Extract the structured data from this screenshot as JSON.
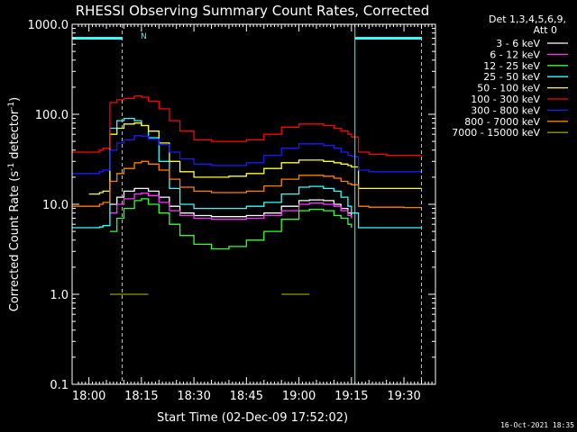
{
  "chart_data": {
    "type": "line",
    "title": "RHESSI Observing Summary Count Rates, Corrected",
    "xlabel": "Start Time (02-Dec-09 17:52:02)",
    "ylabel": "Corrected Count Rate (s⁻¹ detector⁻¹)",
    "ylabel_parts": {
      "main": "Corrected Count Rate (s",
      "sup1": "-1",
      "mid": " detector",
      "sup2": "-1",
      "end": ")"
    },
    "yscale": "log",
    "xlim_minutes": [
      -4.8,
      99
    ],
    "ylim": [
      0.1,
      1000
    ],
    "x_ticks": [
      {
        "label": "18:00",
        "minute": 0
      },
      {
        "label": "18:15",
        "minute": 15
      },
      {
        "label": "18:30",
        "minute": 30
      },
      {
        "label": "18:45",
        "minute": 45
      },
      {
        "label": "19:00",
        "minute": 60
      },
      {
        "label": "19:15",
        "minute": 75
      },
      {
        "label": "19:30",
        "minute": 90
      }
    ],
    "y_ticks": [
      {
        "label": "0.1",
        "value": 0.1
      },
      {
        "label": "1.0",
        "value": 1
      },
      {
        "label": "10.0",
        "value": 10
      },
      {
        "label": "100.0",
        "value": 100
      },
      {
        "label": "1000.0",
        "value": 1000
      }
    ],
    "legend_header": [
      "Det 1,3,4,5,6,9,",
      "Att 0"
    ],
    "legend_position": "right",
    "night_label": "N",
    "timestamp": "16-Oct-2021 18:35",
    "x": [
      -4.8,
      0,
      3,
      4,
      6,
      8,
      10,
      13,
      15,
      17,
      20,
      23,
      26,
      30,
      35,
      40,
      45,
      50,
      55,
      60,
      63,
      67,
      70,
      72,
      74,
      75,
      77,
      80,
      85,
      90,
      95,
      99
    ],
    "series": [
      {
        "name": "3 - 6 keV",
        "color": "#ffffff",
        "values": [
          null,
          null,
          null,
          null,
          10,
          12,
          14,
          15,
          15,
          14,
          12,
          9.5,
          8,
          7.5,
          7.3,
          7.3,
          7.5,
          8,
          9.5,
          11,
          11.2,
          11,
          10,
          9,
          8,
          7,
          null,
          null,
          null,
          null,
          null,
          null
        ]
      },
      {
        "name": "6 - 12 keV",
        "color": "#ff33ff",
        "values": [
          null,
          null,
          null,
          null,
          8,
          10,
          11.5,
          13,
          13.3,
          12.5,
          10.5,
          8.5,
          7.5,
          7,
          6.8,
          6.8,
          7,
          7.5,
          8.5,
          10,
          10.3,
          10,
          9.5,
          8.5,
          7.5,
          7,
          null,
          null,
          null,
          null,
          null,
          null
        ]
      },
      {
        "name": "12 - 25 keV",
        "color": "#33ff33",
        "values": [
          null,
          null,
          null,
          null,
          5,
          7,
          9,
          11,
          11.5,
          10,
          8,
          6,
          4.5,
          3.6,
          3.2,
          3.4,
          4,
          5,
          6.8,
          8.5,
          8.8,
          8.5,
          7.5,
          7,
          6,
          5.5,
          null,
          null,
          null,
          null,
          null,
          null
        ]
      },
      {
        "name": "25 - 50 keV",
        "color": "#33ffff",
        "values": [
          5.5,
          5.5,
          5.6,
          5.8,
          70,
          85,
          90,
          85,
          75,
          55,
          30,
          15,
          10,
          9,
          9,
          9,
          9.5,
          10.5,
          13,
          15.5,
          15.8,
          15,
          14,
          12,
          9.5,
          8,
          5.5,
          5.5,
          5.5,
          5.5,
          5.5,
          null
        ]
      },
      {
        "name": "50 - 100 keV",
        "color": "#ffff33",
        "values": [
          null,
          13,
          13.5,
          14,
          60,
          70,
          78,
          80,
          75,
          65,
          48,
          30,
          23,
          20,
          20,
          20.5,
          22,
          25,
          29,
          31,
          31,
          30,
          29,
          28,
          27,
          26,
          15,
          15,
          15,
          15,
          15,
          null
        ]
      },
      {
        "name": "100 - 300 keV",
        "color": "#ff0000",
        "values": [
          38,
          38,
          40,
          42,
          135,
          145,
          150,
          160,
          155,
          140,
          115,
          85,
          65,
          52,
          50,
          50,
          52,
          60,
          72,
          78,
          78,
          75,
          70,
          65,
          60,
          56,
          38,
          36,
          35,
          35,
          35,
          null
        ]
      },
      {
        "name": "300 - 800 keV",
        "color": "#1a1aff",
        "values": [
          22,
          22,
          23,
          24,
          40,
          48,
          52,
          58,
          57,
          53,
          46,
          38,
          32,
          28,
          27,
          27,
          29,
          35,
          42,
          47,
          47,
          45,
          42,
          38,
          35,
          34,
          24,
          23,
          23,
          23,
          23,
          null
        ]
      },
      {
        "name": "800 - 7000 keV",
        "color": "#ff8000",
        "values": [
          9.5,
          9.5,
          10,
          10.5,
          18,
          22,
          25,
          29,
          30,
          28,
          24,
          19,
          15.5,
          14,
          13.5,
          13.5,
          14,
          16,
          19,
          21,
          21,
          20.5,
          19.5,
          18,
          17,
          16.5,
          9.5,
          9.3,
          9.3,
          9.2,
          9.2,
          null
        ]
      },
      {
        "name": "7000 - 15000 keV",
        "color": "#999900",
        "values": [
          null,
          null,
          null,
          null,
          1.0,
          1.0,
          1.0,
          1.0,
          1.0,
          1.0,
          null,
          null,
          null,
          null,
          null,
          null,
          null,
          null,
          1.0,
          1.0,
          1.0,
          null,
          null,
          null,
          null,
          null,
          null,
          null,
          null,
          null,
          null,
          null
        ]
      }
    ],
    "attenuator_level": 700,
    "attenuator_color": "#33ffff",
    "attenuator_segments_minutes": [
      [
        -4.8,
        9.5
      ],
      [
        76,
        95
      ]
    ],
    "vertical_markers_minutes": [
      {
        "minute": -4.8,
        "style": "solid"
      },
      {
        "minute": 9.5,
        "style": "dashed"
      },
      {
        "minute": 76,
        "style": "solid"
      },
      {
        "minute": 95,
        "style": "dashed"
      }
    ],
    "grid": false
  }
}
